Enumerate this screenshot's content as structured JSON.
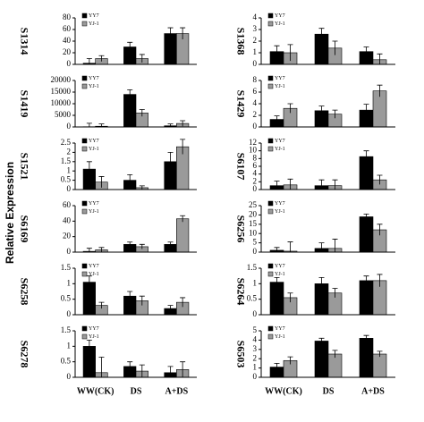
{
  "y_label": "Relative Expression",
  "chart_data": [
    {
      "type": "bar",
      "title": "S1314",
      "ylim": [
        0,
        80
      ],
      "yticks": [
        0,
        20,
        40,
        60,
        80
      ],
      "series": [
        {
          "name": "YY7",
          "color": "#000000",
          "values": [
            2,
            30,
            53
          ],
          "errors": [
            8,
            8,
            10
          ]
        },
        {
          "name": "YJ-1",
          "color": "#9a9a9a",
          "values": [
            10,
            10,
            53
          ],
          "errors": [
            5,
            7,
            10
          ]
        }
      ]
    },
    {
      "type": "bar",
      "title": "S1419",
      "ylim": [
        0,
        20000
      ],
      "yticks": [
        0,
        5000,
        10000,
        15000,
        20000
      ],
      "series": [
        {
          "name": "YY7",
          "color": "#000000",
          "values": [
            100,
            14000,
            500
          ],
          "errors": [
            1500,
            2000,
            800
          ]
        },
        {
          "name": "YJ-1",
          "color": "#9a9a9a",
          "values": [
            300,
            6000,
            1500
          ],
          "errors": [
            1000,
            1500,
            1200
          ]
        }
      ]
    },
    {
      "type": "bar",
      "title": "S1521",
      "ylim": [
        0,
        2.5
      ],
      "yticks": [
        0,
        0.5,
        1,
        1.5,
        2,
        2.5
      ],
      "series": [
        {
          "name": "YY7",
          "color": "#000000",
          "values": [
            1.1,
            0.5,
            1.5
          ],
          "errors": [
            0.4,
            0.3,
            0.5
          ]
        },
        {
          "name": "YJ-1",
          "color": "#9a9a9a",
          "values": [
            0.4,
            0.1,
            2.3
          ],
          "errors": [
            0.3,
            0.1,
            0.4
          ]
        }
      ]
    },
    {
      "type": "bar",
      "title": "S6169",
      "ylim": [
        0,
        60
      ],
      "yticks": [
        0,
        20,
        40,
        60
      ],
      "series": [
        {
          "name": "YY7",
          "color": "#000000",
          "values": [
            1,
            10,
            10
          ],
          "errors": [
            4,
            3,
            3
          ]
        },
        {
          "name": "YJ-1",
          "color": "#9a9a9a",
          "values": [
            3,
            7,
            43
          ],
          "errors": [
            3,
            3,
            4
          ]
        }
      ]
    },
    {
      "type": "bar",
      "title": "S6258",
      "ylim": [
        0,
        1.5
      ],
      "yticks": [
        0,
        0.5,
        1,
        1.5
      ],
      "series": [
        {
          "name": "YY7",
          "color": "#000000",
          "values": [
            1.05,
            0.6,
            0.2
          ],
          "errors": [
            0.2,
            0.15,
            0.1
          ]
        },
        {
          "name": "YJ-1",
          "color": "#9a9a9a",
          "values": [
            0.3,
            0.45,
            0.4
          ],
          "errors": [
            0.1,
            0.15,
            0.15
          ]
        }
      ]
    },
    {
      "type": "bar",
      "title": "S6278",
      "ylim": [
        0,
        1.5
      ],
      "yticks": [
        0,
        0.5,
        1,
        1.5
      ],
      "categories": [
        "WW(CK)",
        "DS",
        "A+DS"
      ],
      "series": [
        {
          "name": "YY7",
          "color": "#000000",
          "values": [
            1.0,
            0.35,
            0.15
          ],
          "errors": [
            0.2,
            0.15,
            0.2
          ]
        },
        {
          "name": "YJ-1",
          "color": "#9a9a9a",
          "values": [
            0.15,
            0.2,
            0.25
          ],
          "errors": [
            0.5,
            0.2,
            0.25
          ]
        }
      ]
    },
    {
      "type": "bar",
      "title": "S1368",
      "ylim": [
        0,
        4
      ],
      "yticks": [
        0,
        1,
        2,
        3,
        4
      ],
      "series": [
        {
          "name": "YY7",
          "color": "#000000",
          "values": [
            1.1,
            2.6,
            1.1
          ],
          "errors": [
            0.5,
            0.5,
            0.4
          ]
        },
        {
          "name": "YJ-1",
          "color": "#9a9a9a",
          "values": [
            1.0,
            1.4,
            0.4
          ],
          "errors": [
            0.7,
            0.6,
            0.5
          ]
        }
      ]
    },
    {
      "type": "bar",
      "title": "S1429",
      "ylim": [
        0,
        8
      ],
      "yticks": [
        0,
        2,
        4,
        6,
        8
      ],
      "series": [
        {
          "name": "YY7",
          "color": "#000000",
          "values": [
            1.3,
            2.8,
            2.9
          ],
          "errors": [
            0.6,
            0.8,
            1
          ]
        },
        {
          "name": "YJ-1",
          "color": "#9a9a9a",
          "values": [
            3.2,
            2.2,
            6.2
          ],
          "errors": [
            0.8,
            0.7,
            1
          ]
        }
      ]
    },
    {
      "type": "bar",
      "title": "S6107",
      "ylim": [
        0,
        12
      ],
      "yticks": [
        0,
        2,
        4,
        6,
        8,
        10,
        12
      ],
      "series": [
        {
          "name": "YY7",
          "color": "#000000",
          "values": [
            1,
            1,
            8.5
          ],
          "errors": [
            1.2,
            1.5,
            1.5
          ]
        },
        {
          "name": "YJ-1",
          "color": "#9a9a9a",
          "values": [
            1.2,
            1,
            2.5
          ],
          "errors": [
            1.5,
            1.5,
            1.2
          ]
        }
      ]
    },
    {
      "type": "bar",
      "title": "S6256",
      "ylim": [
        0,
        25
      ],
      "yticks": [
        0,
        5,
        10,
        15,
        20,
        25
      ],
      "series": [
        {
          "name": "YY7",
          "color": "#000000",
          "values": [
            1,
            2,
            19
          ],
          "errors": [
            1.5,
            3,
            1.5
          ]
        },
        {
          "name": "YJ-1",
          "color": "#9a9a9a",
          "values": [
            0.5,
            2,
            12
          ],
          "errors": [
            5,
            5,
            3
          ]
        }
      ]
    },
    {
      "type": "bar",
      "title": "S6264",
      "ylim": [
        0,
        1.5
      ],
      "yticks": [
        0,
        0.5,
        1,
        1.5
      ],
      "series": [
        {
          "name": "YY7",
          "color": "#000000",
          "values": [
            1.05,
            1.0,
            1.1
          ],
          "errors": [
            0.15,
            0.2,
            0.15
          ]
        },
        {
          "name": "YJ-1",
          "color": "#9a9a9a",
          "values": [
            0.55,
            0.7,
            1.1
          ],
          "errors": [
            0.15,
            0.15,
            0.2
          ]
        }
      ]
    },
    {
      "type": "bar",
      "title": "S6503",
      "ylim": [
        0,
        5
      ],
      "yticks": [
        0,
        1,
        2,
        3,
        4,
        5
      ],
      "categories": [
        "WW(CK)",
        "DS",
        "A+DS"
      ],
      "series": [
        {
          "name": "YY7",
          "color": "#000000",
          "values": [
            1.1,
            3.9,
            4.2
          ],
          "errors": [
            0.4,
            0.3,
            0.3
          ]
        },
        {
          "name": "YJ-1",
          "color": "#9a9a9a",
          "values": [
            1.8,
            2.5,
            2.5
          ],
          "errors": [
            0.4,
            0.4,
            0.3
          ]
        }
      ]
    }
  ]
}
